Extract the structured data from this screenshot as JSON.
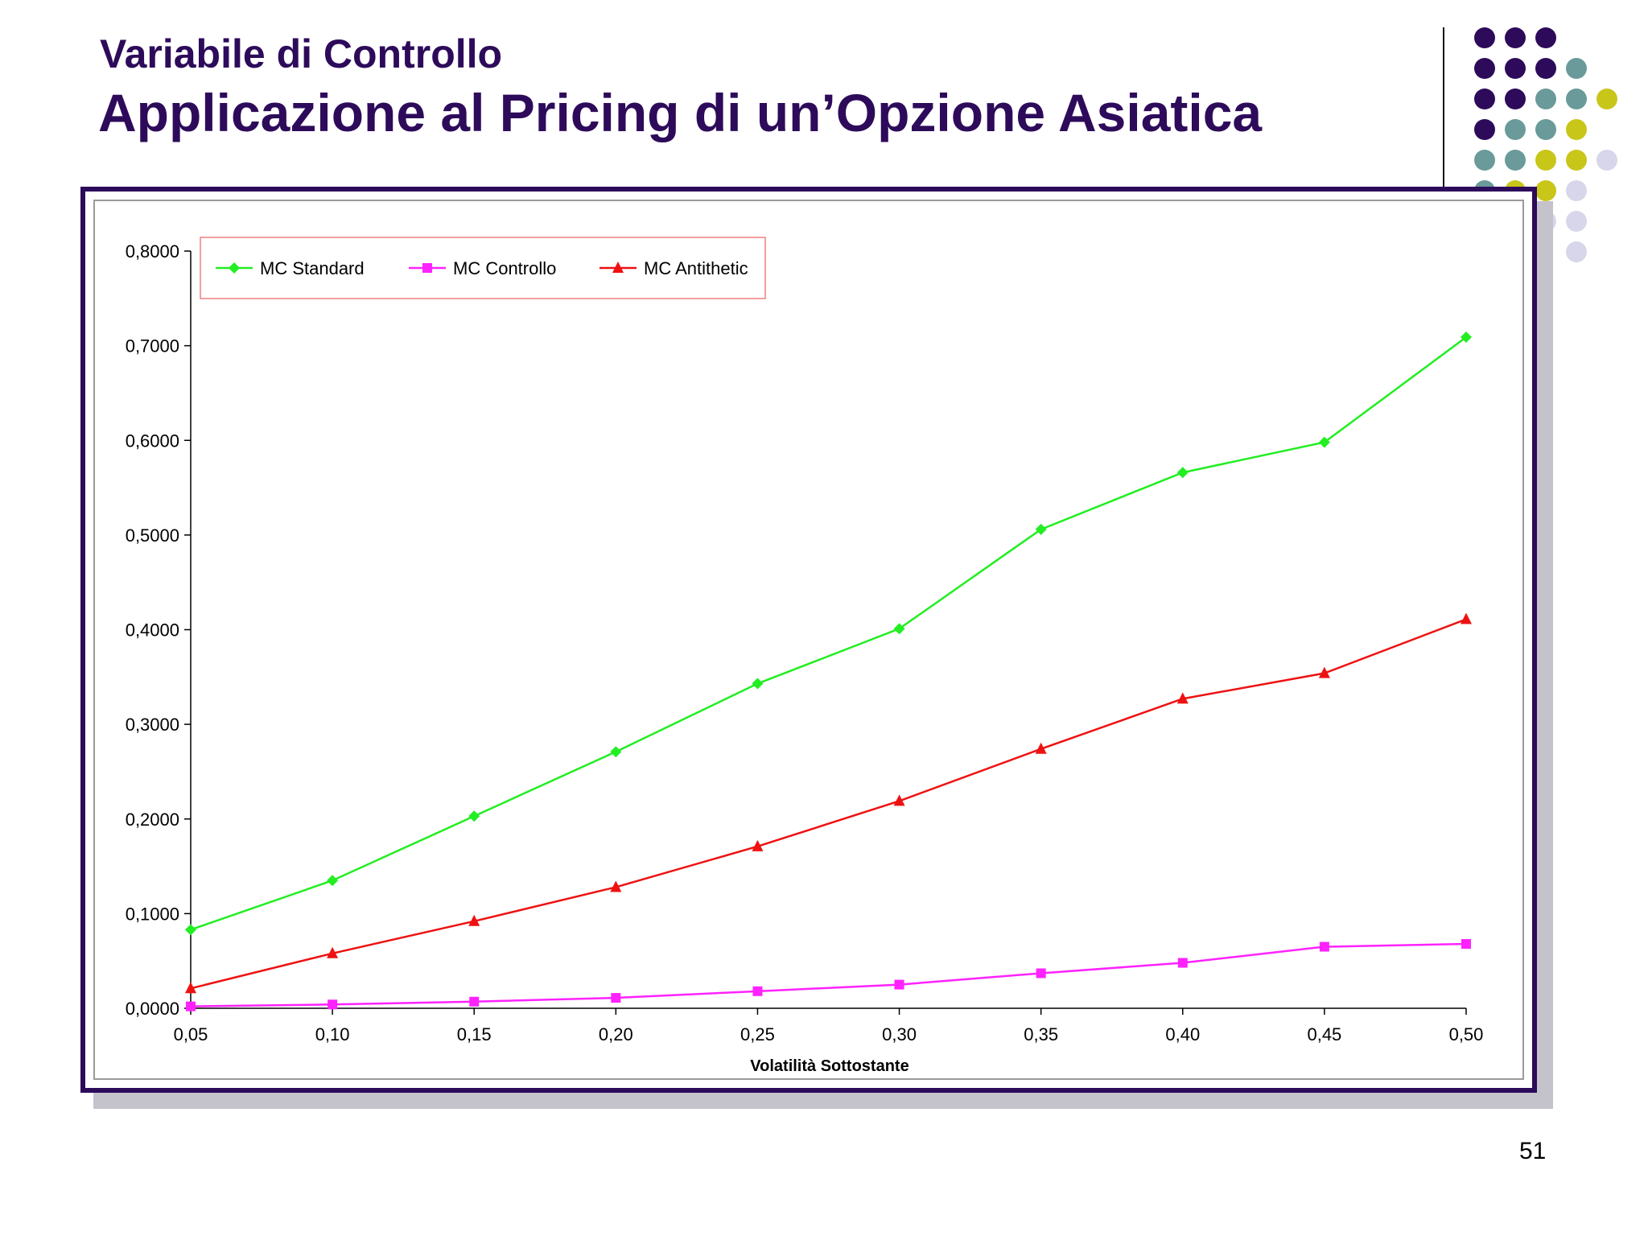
{
  "slide": {
    "subtitle": "Variabile di Controllo",
    "title": "Applicazione al Pricing di un’Opzione Asiatica",
    "page_number": "51",
    "theme_colors": {
      "primary": "#2d0b5a",
      "teal": "#6a9a9a",
      "olive": "#c9c61a",
      "lavender": "#d8d6ea"
    }
  },
  "chart_data": {
    "type": "line",
    "title": "",
    "xlabel": "Volatilità Sottostante",
    "ylabel": "",
    "x": [
      "0,05",
      "0,10",
      "0,15",
      "0,20",
      "0,25",
      "0,30",
      "0,35",
      "0,40",
      "0,45",
      "0,50"
    ],
    "y_ticks": [
      "0,0000",
      "0,1000",
      "0,2000",
      "0,3000",
      "0,4000",
      "0,5000",
      "0,6000",
      "0,7000",
      "0,8000"
    ],
    "ylim": [
      0,
      0.8
    ],
    "grid": false,
    "legend_position": "top-left",
    "series": [
      {
        "name": "MC Standard",
        "color": "#22ee22",
        "marker": "diamond",
        "values": [
          0.083,
          0.135,
          0.203,
          0.271,
          0.343,
          0.401,
          0.506,
          0.566,
          0.598,
          0.709
        ]
      },
      {
        "name": "MC Controllo",
        "color": "#ff22ff",
        "marker": "square",
        "values": [
          0.002,
          0.004,
          0.007,
          0.011,
          0.018,
          0.025,
          0.037,
          0.048,
          0.065,
          0.068
        ]
      },
      {
        "name": "MC Antithetic",
        "color": "#ee1111",
        "marker": "triangle",
        "values": [
          0.021,
          0.058,
          0.092,
          0.128,
          0.171,
          0.219,
          0.274,
          0.327,
          0.354,
          0.411
        ]
      }
    ]
  }
}
